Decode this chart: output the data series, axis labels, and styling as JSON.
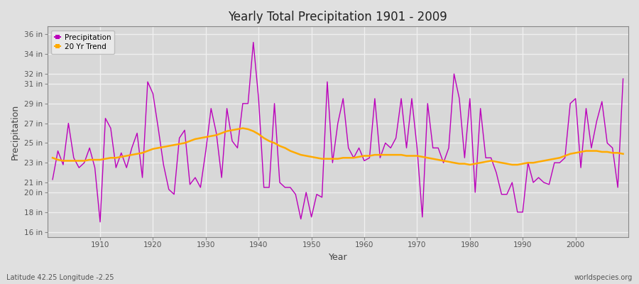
{
  "title": "Yearly Total Precipitation 1901 - 2009",
  "xlabel": "Year",
  "ylabel": "Precipitation",
  "subtitle_lat": "Latitude 42.25 Longitude -2.25",
  "watermark": "worldspecies.org",
  "bg_color": "#e0e0e0",
  "plot_bg_color": "#d8d8d8",
  "grid_color": "#f0f0f0",
  "precip_color": "#bb00bb",
  "trend_color": "#ffaa00",
  "years": [
    1901,
    1902,
    1903,
    1904,
    1905,
    1906,
    1907,
    1908,
    1909,
    1910,
    1911,
    1912,
    1913,
    1914,
    1915,
    1916,
    1917,
    1918,
    1919,
    1920,
    1921,
    1922,
    1923,
    1924,
    1925,
    1926,
    1927,
    1928,
    1929,
    1930,
    1931,
    1932,
    1933,
    1934,
    1935,
    1936,
    1937,
    1938,
    1939,
    1940,
    1941,
    1942,
    1943,
    1944,
    1945,
    1946,
    1947,
    1948,
    1949,
    1950,
    1951,
    1952,
    1953,
    1954,
    1955,
    1956,
    1957,
    1958,
    1959,
    1960,
    1961,
    1962,
    1963,
    1964,
    1965,
    1966,
    1967,
    1968,
    1969,
    1970,
    1971,
    1972,
    1973,
    1974,
    1975,
    1976,
    1977,
    1978,
    1979,
    1980,
    1981,
    1982,
    1983,
    1984,
    1985,
    1986,
    1987,
    1988,
    1989,
    1990,
    1991,
    1992,
    1993,
    1994,
    1995,
    1996,
    1997,
    1998,
    1999,
    2000,
    2001,
    2002,
    2003,
    2004,
    2005,
    2006,
    2007,
    2008,
    2009
  ],
  "precip_in": [
    21.3,
    24.2,
    22.8,
    27.0,
    23.5,
    22.5,
    23.0,
    24.5,
    22.5,
    17.0,
    27.5,
    26.5,
    22.5,
    24.0,
    22.5,
    24.5,
    26.0,
    21.5,
    31.2,
    30.0,
    26.5,
    22.8,
    20.3,
    19.8,
    25.5,
    26.3,
    20.8,
    21.5,
    20.5,
    24.2,
    28.5,
    26.0,
    21.5,
    28.5,
    25.2,
    24.5,
    29.0,
    29.0,
    35.2,
    29.5,
    20.5,
    20.5,
    29.0,
    21.0,
    20.5,
    20.5,
    19.8,
    17.3,
    20.0,
    17.5,
    19.8,
    19.5,
    31.2,
    23.0,
    27.0,
    29.5,
    24.5,
    23.5,
    24.5,
    23.2,
    23.5,
    29.5,
    23.5,
    25.0,
    24.5,
    25.5,
    29.5,
    24.5,
    29.5,
    24.5,
    17.5,
    29.0,
    24.5,
    24.5,
    23.0,
    24.5,
    32.0,
    29.5,
    23.5,
    29.5,
    20.0,
    28.5,
    23.5,
    23.5,
    22.0,
    19.8,
    19.8,
    21.0,
    18.0,
    18.0,
    23.0,
    21.0,
    21.5,
    21.0,
    20.8,
    23.0,
    23.0,
    23.5,
    29.0,
    29.5,
    22.5,
    28.5,
    24.5,
    27.2,
    29.2,
    25.0,
    24.5,
    20.5,
    31.5
  ],
  "trend_in": [
    23.5,
    23.3,
    23.2,
    23.2,
    23.2,
    23.2,
    23.2,
    23.3,
    23.3,
    23.3,
    23.4,
    23.5,
    23.5,
    23.6,
    23.7,
    23.8,
    23.9,
    24.0,
    24.2,
    24.4,
    24.5,
    24.6,
    24.7,
    24.8,
    24.9,
    25.0,
    25.2,
    25.4,
    25.5,
    25.6,
    25.7,
    25.8,
    26.0,
    26.2,
    26.3,
    26.4,
    26.5,
    26.4,
    26.2,
    25.9,
    25.5,
    25.2,
    25.0,
    24.7,
    24.5,
    24.2,
    24.0,
    23.8,
    23.7,
    23.6,
    23.5,
    23.4,
    23.4,
    23.4,
    23.4,
    23.5,
    23.5,
    23.5,
    23.6,
    23.7,
    23.7,
    23.8,
    23.8,
    23.8,
    23.8,
    23.8,
    23.8,
    23.7,
    23.7,
    23.7,
    23.6,
    23.5,
    23.4,
    23.3,
    23.2,
    23.1,
    23.0,
    22.9,
    22.9,
    22.8,
    22.9,
    23.0,
    23.1,
    23.2,
    23.1,
    23.0,
    22.9,
    22.8,
    22.8,
    22.9,
    23.0,
    23.0,
    23.1,
    23.2,
    23.3,
    23.4,
    23.5,
    23.7,
    23.9,
    24.0,
    24.1,
    24.2,
    24.2,
    24.2,
    24.1,
    24.1,
    24.0,
    24.0,
    23.9
  ],
  "yticks": [
    16,
    18,
    20,
    21,
    23,
    25,
    27,
    29,
    31,
    32,
    34,
    36
  ],
  "ylim": [
    15.5,
    36.8
  ],
  "xlim": [
    1900,
    2010
  ],
  "xticks": [
    1910,
    1920,
    1930,
    1940,
    1950,
    1960,
    1970,
    1980,
    1990,
    2000
  ]
}
